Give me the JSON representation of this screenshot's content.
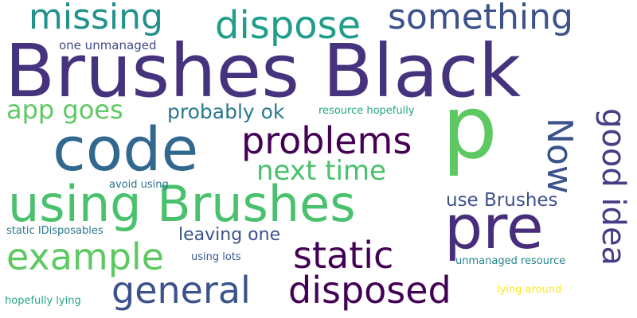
{
  "words": [
    {
      "text": "Brushes Black",
      "color": "#46337e"
    },
    {
      "text": "p",
      "color": "#5ec962"
    },
    {
      "text": "pre",
      "color": "#472d7b"
    },
    {
      "text": "code",
      "color": "#31688e"
    },
    {
      "text": "using Brushes",
      "color": "#4ac16d"
    },
    {
      "text": "dispose",
      "color": "#1f9e89"
    },
    {
      "text": "missing",
      "color": "#21918c"
    },
    {
      "text": "something",
      "color": "#3b528b"
    },
    {
      "text": "problems",
      "color": "#440154"
    },
    {
      "text": "next time",
      "color": "#4ac16d"
    },
    {
      "text": "Now",
      "color": "#3b528b"
    },
    {
      "text": "good idea",
      "color": "#433e85"
    },
    {
      "text": "static",
      "color": "#440154"
    },
    {
      "text": "example",
      "color": "#5ec962"
    },
    {
      "text": "general",
      "color": "#3b528b"
    },
    {
      "text": "disposed",
      "color": "#440154"
    },
    {
      "text": "app goes",
      "color": "#5ec962"
    },
    {
      "text": "probably ok",
      "color": "#2a788e"
    },
    {
      "text": "use Brushes",
      "color": "#3b528b"
    },
    {
      "text": "leaving one",
      "color": "#3b528b"
    },
    {
      "text": "one unmanaged",
      "color": "#3e4989"
    },
    {
      "text": "resource hopefully",
      "color": "#22a884"
    },
    {
      "text": "avoid using",
      "color": "#2c728e"
    },
    {
      "text": "static IDisposables",
      "color": "#2a788e"
    },
    {
      "text": "using lots",
      "color": "#38598c"
    },
    {
      "text": "unmanaged resource",
      "color": "#25858e"
    },
    {
      "text": "lying around",
      "color": "#fde725"
    },
    {
      "text": "hopefully lying",
      "color": "#22a884"
    }
  ]
}
